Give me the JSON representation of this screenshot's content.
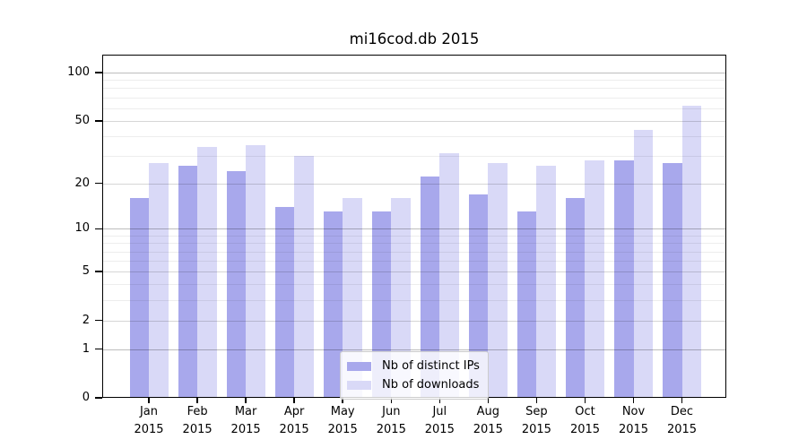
{
  "title": "mi16cod.db 2015",
  "chart_data": {
    "type": "bar",
    "title": "mi16cod.db 2015",
    "categories": [
      "Jan 2015",
      "Feb 2015",
      "Mar 2015",
      "Apr 2015",
      "May 2015",
      "Jun 2015",
      "Jul 2015",
      "Aug 2015",
      "Sep 2015",
      "Oct 2015",
      "Nov 2015",
      "Dec 2015"
    ],
    "series": [
      {
        "name": "Nb of distinct IPs",
        "color": "#a8a8ec",
        "values": [
          16,
          26,
          24,
          14,
          13,
          13,
          22,
          17,
          13,
          16,
          28,
          27
        ]
      },
      {
        "name": "Nb of downloads",
        "color": "#d9d9f7",
        "values": [
          27,
          34,
          35,
          30,
          16,
          16,
          31,
          27,
          26,
          28,
          44,
          62
        ]
      }
    ],
    "xlabel": "",
    "ylabel": "",
    "y_scale": "log10(value+1)",
    "y_ticks": [
      100,
      50,
      20,
      10,
      5,
      2,
      1,
      0
    ],
    "y_minor_gridlines": [
      3,
      4,
      6,
      7,
      8,
      9,
      30,
      40,
      60,
      70,
      80,
      90
    ],
    "y_decade_gridlines": [
      1,
      10,
      100
    ],
    "ylim": [
      0,
      129
    ],
    "grid": true,
    "legend_position": "lower center"
  },
  "legend": {
    "items": [
      {
        "label": "Nb of distinct IPs",
        "color": "#a8a8ec"
      },
      {
        "label": "Nb of downloads",
        "color": "#d9d9f7"
      }
    ]
  }
}
